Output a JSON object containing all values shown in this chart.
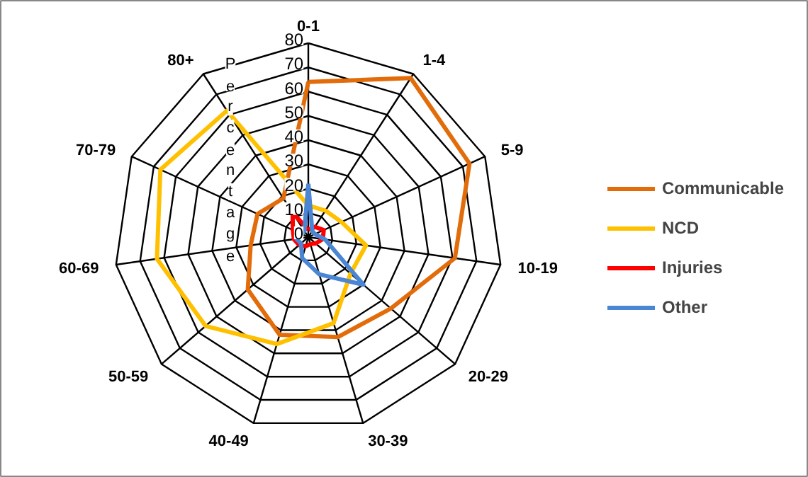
{
  "chart_data": {
    "type": "radar",
    "ylabel": "Percentage",
    "categories": [
      "0-1",
      "1-4",
      "5-9",
      "10-19",
      "20-29",
      "30-39",
      "40-49",
      "50-59",
      "60-69",
      "70-79",
      "80+"
    ],
    "series": [
      {
        "name": "Communicable",
        "color": "#e36c0a",
        "values": [
          64,
          78,
          73,
          61,
          45,
          43,
          42,
          33,
          24,
          23,
          19
        ]
      },
      {
        "name": "NCD",
        "color": "#ffc000",
        "values": [
          13,
          13,
          15,
          24,
          23,
          37,
          46,
          56,
          63,
          67,
          62
        ]
      },
      {
        "name": "Injuries",
        "color": "#ff0000",
        "values": [
          3,
          5,
          7,
          6,
          4,
          3,
          4,
          5,
          6,
          7,
          12
        ]
      },
      {
        "name": "Other",
        "color": "#4a86d4",
        "values": [
          22,
          3,
          3,
          7,
          30,
          16,
          9,
          4,
          5,
          3,
          3
        ]
      }
    ],
    "ylim": [
      0,
      80
    ],
    "yticks": [
      0,
      10,
      20,
      30,
      40,
      50,
      60,
      70,
      80
    ],
    "grid": true,
    "legend": "right"
  }
}
